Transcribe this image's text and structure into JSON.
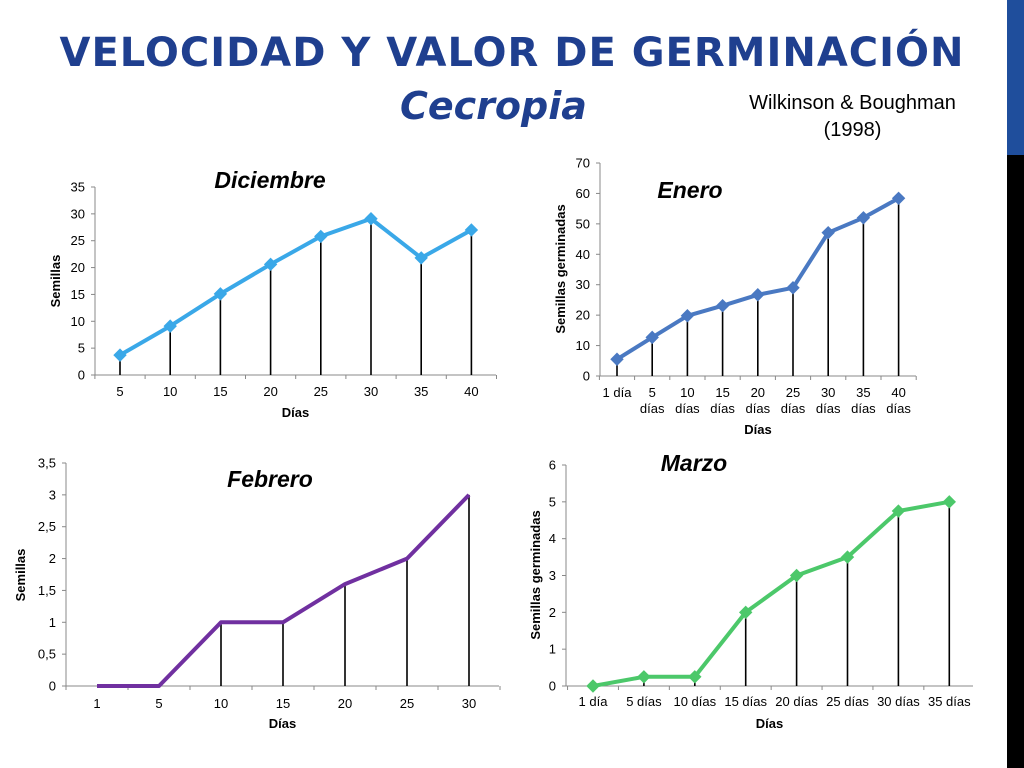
{
  "title": "VELOCIDAD Y VALOR DE GERMINACIÓN",
  "subtitle": "Cecropia",
  "citation": [
    "Wilkinson & Boughman",
    "(1998)"
  ],
  "colors": {
    "title": "#1f3f8f",
    "accent_blue": "#1f4e9c",
    "right_bar_blue": "#1f4e9c",
    "right_bar_black": "#000000"
  },
  "chart_data": [
    {
      "type": "line",
      "title": "Diciembre",
      "xlabel": "Días",
      "ylabel": "Semillas",
      "categories": [
        "5",
        "10",
        "15",
        "20",
        "25",
        "30",
        "35",
        "40"
      ],
      "values": [
        3.7,
        9.1,
        15.1,
        20.6,
        25.8,
        29.1,
        21.8,
        27
      ],
      "ylim": [
        0,
        35
      ],
      "yticks": [
        "0",
        "5",
        "10",
        "15",
        "20",
        "25",
        "30",
        "35"
      ],
      "color": "#3aa8e8",
      "marker": "diamond",
      "drop_lines": true,
      "grid": false
    },
    {
      "type": "line",
      "title": "Enero",
      "xlabel": "Días",
      "ylabel": "Semillas germinadas",
      "categories": [
        "1 día",
        "5 días",
        "10 días",
        "15 días",
        "20 días",
        "25 días",
        "30 días",
        "35 días",
        "40 días"
      ],
      "values": [
        5.5,
        12.7,
        19.8,
        23.1,
        26.7,
        29,
        47.1,
        52,
        58.4
      ],
      "ylim": [
        0,
        70
      ],
      "yticks": [
        "0",
        "10",
        "20",
        "30",
        "40",
        "50",
        "60",
        "70"
      ],
      "color": "#4a79c2",
      "marker": "diamond",
      "drop_lines": true,
      "grid": false
    },
    {
      "type": "line",
      "title": "Febrero",
      "xlabel": "Días",
      "ylabel": "Semillas",
      "categories": [
        "1",
        "5",
        "10",
        "15",
        "20",
        "25",
        "30"
      ],
      "values": [
        0,
        0,
        1,
        1,
        1.6,
        2,
        3
      ],
      "ylim": [
        0,
        3.5
      ],
      "yticks": [
        "0",
        "0,5",
        "1",
        "1,5",
        "2",
        "2,5",
        "3",
        "3,5"
      ],
      "color": "#7030a0",
      "marker": "none",
      "drop_lines": true,
      "grid": false
    },
    {
      "type": "line",
      "title": "Marzo",
      "xlabel": "Días",
      "ylabel": "Semillas germinadas",
      "categories": [
        "1 día",
        "5 días",
        "10 días",
        "15 días",
        "20 días",
        "25 días",
        "30 días",
        "35 días"
      ],
      "values": [
        0,
        0.25,
        0.25,
        2,
        3,
        3.5,
        4.75,
        5
      ],
      "ylim": [
        0,
        6
      ],
      "yticks": [
        "0",
        "1",
        "2",
        "3",
        "4",
        "5",
        "6"
      ],
      "color": "#4cc86a",
      "marker": "diamond",
      "drop_lines": true,
      "grid": false
    }
  ]
}
